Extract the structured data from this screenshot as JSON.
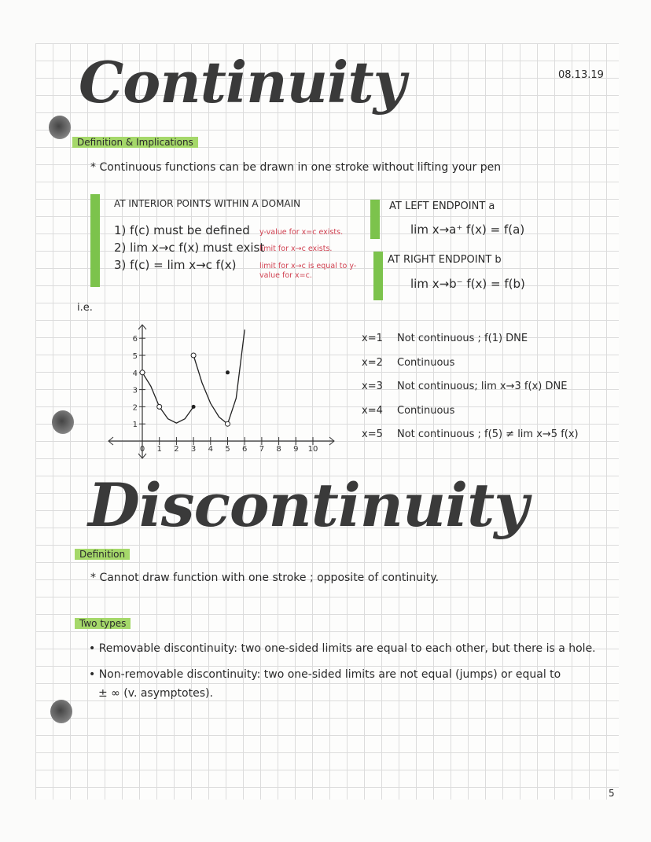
{
  "date": "08.13.19",
  "page_number": "5",
  "continuity": {
    "title": "Continuity",
    "section_label": "Definition & Implications",
    "summary": "* Continuous functions can be drawn in one stroke without lifting your pen",
    "interior": {
      "heading": "AT INTERIOR POINTS WITHIN A DOMAIN",
      "conditions": [
        "1) f(c) must be defined",
        "2) lim x→c f(x) must exist",
        "3) f(c) = lim x→c f(x)"
      ],
      "notes": [
        "y-value for x=c exists.",
        "limit for x→c exists.",
        "limit for x→c is equal to y-value for x=c."
      ]
    },
    "left_endpoint": {
      "heading": "AT LEFT ENDPOINT a",
      "formula": "lim x→a⁺ f(x) = f(a)"
    },
    "right_endpoint": {
      "heading": "AT RIGHT ENDPOINT b",
      "formula": "lim x→b⁻ f(x) = f(b)"
    },
    "ie_label": "i.e.",
    "analysis": [
      {
        "x": "x=1",
        "text": "Not continuous ; f(1) DNE"
      },
      {
        "x": "x=2",
        "text": "Continuous"
      },
      {
        "x": "x=3",
        "text": "Not continuous; lim x→3 f(x) DNE"
      },
      {
        "x": "x=4",
        "text": "Continuous"
      },
      {
        "x": "x=5",
        "text": "Not continuous ; f(5) ≠ lim x→5 f(x)"
      }
    ]
  },
  "chart_data": {
    "type": "line",
    "x_ticks": [
      "0",
      "1",
      "2",
      "3",
      "4",
      "5",
      "6",
      "7",
      "8",
      "9",
      "10"
    ],
    "y_ticks": [
      "1",
      "2",
      "3",
      "4",
      "5",
      "6"
    ],
    "xlim": [
      0,
      10
    ],
    "ylim": [
      0,
      6
    ],
    "series": [
      {
        "points": [
          [
            0,
            4
          ],
          [
            0.5,
            3.2
          ],
          [
            1,
            2
          ],
          [
            1.5,
            1.3
          ],
          [
            2,
            1.05
          ],
          [
            2.5,
            1.3
          ],
          [
            3,
            2
          ]
        ]
      },
      {
        "points": [
          [
            3,
            5
          ],
          [
            3.5,
            3.4
          ],
          [
            4,
            2.2
          ],
          [
            4.5,
            1.4
          ],
          [
            5,
            1
          ],
          [
            5.5,
            2.5
          ],
          [
            6,
            6.5
          ]
        ]
      }
    ],
    "open_points": [
      [
        0,
        4
      ],
      [
        1,
        2
      ],
      [
        3,
        5
      ],
      [
        5,
        1
      ]
    ],
    "closed_points": [
      [
        3,
        2
      ],
      [
        5,
        4
      ]
    ]
  },
  "discontinuity": {
    "title": "Discontinuity",
    "section_label": "Definition",
    "definition": "* Cannot draw function with one stroke ; opposite of continuity.",
    "types_label": "Two types",
    "types": [
      "• Removable discontinuity: two one-sided limits are equal to each other, but there is a hole.",
      "• Non-removable discontinuity: two one-sided limits are not equal (jumps) or equal to",
      "± ∞ (v. asymptotes)."
    ]
  }
}
